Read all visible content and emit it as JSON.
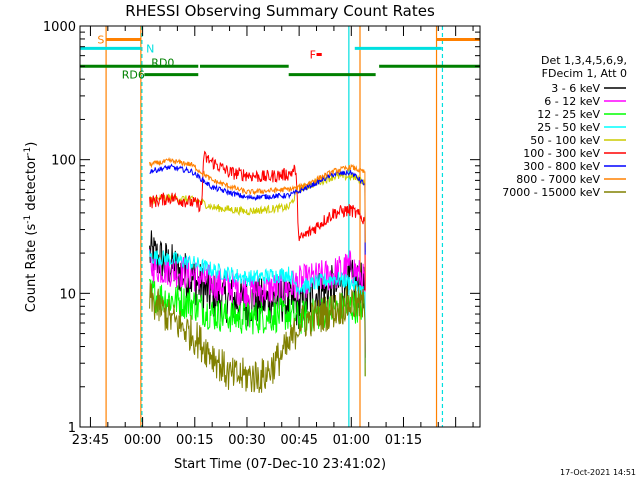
{
  "chart_data": {
    "type": "line",
    "title": "RHESSI Observing Summary Count Rates",
    "xlabel": "Start Time (07-Dec-10 23:41:02)",
    "ylabel_main": "Count Rate (s",
    "ylabel_sup1": "-1",
    "ylabel_mid": " detector",
    "ylabel_sup2": "-1",
    "ylabel_end": ")",
    "y_scale": "log",
    "ylim": [
      1,
      1000
    ],
    "y_ticks": [
      {
        "v": 1,
        "label": "1"
      },
      {
        "v": 10,
        "label": "10"
      },
      {
        "v": 100,
        "label": "100"
      },
      {
        "v": 1000,
        "label": "1000"
      }
    ],
    "xlim_minutes": [
      -18,
      97
    ],
    "x_ticks": [
      {
        "t": -15,
        "label": "23:45"
      },
      {
        "t": 0,
        "label": "00:00"
      },
      {
        "t": 15,
        "label": "00:15"
      },
      {
        "t": 30,
        "label": "00:30"
      },
      {
        "t": 45,
        "label": "00:45"
      },
      {
        "t": 60,
        "label": "01:00"
      },
      {
        "t": 75,
        "label": "01:15"
      }
    ],
    "legend_title_1": "Det 1,3,4,5,6,9,",
    "legend_title_2": "FDecim 1, Att 0",
    "legend_placement": "right",
    "series": [
      {
        "name": "3 - 6 keV",
        "color": "#000000",
        "noise": 0.18,
        "points": [
          [
            2,
            20
          ],
          [
            8,
            16
          ],
          [
            14,
            13
          ],
          [
            20,
            9.5
          ],
          [
            30,
            8.5
          ],
          [
            40,
            9
          ],
          [
            45,
            8
          ],
          [
            50,
            10
          ],
          [
            60,
            12
          ],
          [
            64,
            11
          ]
        ]
      },
      {
        "name": "6 - 12 keV",
        "color": "#ff00ff",
        "noise": 0.13,
        "points": [
          [
            2,
            16
          ],
          [
            8,
            15
          ],
          [
            14,
            14
          ],
          [
            20,
            12
          ],
          [
            30,
            10.5
          ],
          [
            42,
            11
          ],
          [
            45,
            12
          ],
          [
            55,
            14
          ],
          [
            60,
            16
          ],
          [
            64,
            12
          ]
        ]
      },
      {
        "name": "12 - 25 keV",
        "color": "#00ff00",
        "noise": 0.13,
        "points": [
          [
            2,
            10
          ],
          [
            8,
            9
          ],
          [
            14,
            8.5
          ],
          [
            20,
            7
          ],
          [
            30,
            6.5
          ],
          [
            42,
            7
          ],
          [
            45,
            6.5
          ],
          [
            55,
            7.5
          ],
          [
            60,
            8
          ],
          [
            64,
            8
          ]
        ]
      },
      {
        "name": "25 - 50 keV",
        "color": "#00ffff",
        "noise": 0.06,
        "points": [
          [
            2,
            19
          ],
          [
            8,
            18
          ],
          [
            14,
            17
          ],
          [
            20,
            15
          ],
          [
            30,
            13
          ],
          [
            42,
            14
          ],
          [
            45,
            11
          ],
          [
            55,
            13
          ],
          [
            60,
            12
          ],
          [
            64,
            10
          ]
        ]
      },
      {
        "name": "50 - 100 keV",
        "color": "#cccc00",
        "noise": 0.03,
        "points": [
          [
            2,
            50
          ],
          [
            8,
            52
          ],
          [
            14,
            50
          ],
          [
            17,
            48
          ],
          [
            20,
            44
          ],
          [
            30,
            41
          ],
          [
            42,
            44
          ],
          [
            45,
            60
          ],
          [
            55,
            75
          ],
          [
            60,
            75
          ],
          [
            64,
            68
          ]
        ]
      },
      {
        "name": "100 - 300 keV",
        "color": "#ff0000",
        "noise": 0.05,
        "points": [
          [
            2,
            48
          ],
          [
            8,
            52
          ],
          [
            14,
            48
          ],
          [
            17,
            45
          ],
          [
            17.5,
            105
          ],
          [
            25,
            80
          ],
          [
            35,
            74
          ],
          [
            42,
            78
          ],
          [
            44,
            85
          ],
          [
            45,
            25
          ],
          [
            55,
            40
          ],
          [
            60,
            42
          ],
          [
            64,
            35
          ]
        ]
      },
      {
        "name": "300 - 800 keV",
        "color": "#0000ff",
        "noise": 0.02,
        "points": [
          [
            2,
            82
          ],
          [
            8,
            88
          ],
          [
            14,
            82
          ],
          [
            20,
            62
          ],
          [
            30,
            52
          ],
          [
            42,
            54
          ],
          [
            45,
            58
          ],
          [
            55,
            78
          ],
          [
            60,
            80
          ],
          [
            64,
            65
          ]
        ]
      },
      {
        "name": "800 - 7000 keV",
        "color": "#ff8000",
        "noise": 0.02,
        "points": [
          [
            2,
            92
          ],
          [
            8,
            98
          ],
          [
            14,
            92
          ],
          [
            20,
            70
          ],
          [
            30,
            57
          ],
          [
            42,
            60
          ],
          [
            45,
            62
          ],
          [
            55,
            82
          ],
          [
            60,
            88
          ],
          [
            64,
            80
          ]
        ]
      },
      {
        "name": "7000 - 15000 keV",
        "color": "#808000",
        "noise": 0.14,
        "points": [
          [
            2,
            9
          ],
          [
            8,
            6.5
          ],
          [
            14,
            5
          ],
          [
            20,
            3.5
          ],
          [
            25,
            2.4
          ],
          [
            35,
            2.4
          ],
          [
            38,
            3
          ],
          [
            42,
            4
          ],
          [
            45,
            6
          ],
          [
            55,
            7.5
          ],
          [
            60,
            8.5
          ],
          [
            64,
            8
          ]
        ]
      }
    ],
    "vlines": [
      {
        "t": -19.5,
        "color": "#00e0e0",
        "dash": false
      },
      {
        "t": -10.5,
        "color": "#ff8000",
        "dash": false
      },
      {
        "t": -0.5,
        "color": "#ff8000",
        "dash": false
      },
      {
        "t": -0.2,
        "color": "#00e0e0",
        "dash": true
      },
      {
        "t": 59.3,
        "color": "#00e0e0",
        "dash": false
      },
      {
        "t": 62.5,
        "color": "#ff8000",
        "dash": false
      },
      {
        "t": 84.5,
        "color": "#ff8000",
        "dash": false
      },
      {
        "t": 86.2,
        "color": "#00e0e0",
        "dash": true
      }
    ],
    "flag_bars": [
      {
        "label": "S",
        "color": "#ff8000",
        "y": 793,
        "segments": [
          [
            -10.5,
            -0.5
          ],
          [
            84.5,
            97
          ]
        ]
      },
      {
        "label": "N",
        "color": "#00e0e0",
        "y": 680,
        "segments": [
          [
            -18,
            -0.5
          ],
          [
            61,
            86
          ]
        ]
      },
      {
        "label": "RD0",
        "color": "#008000",
        "y": 500,
        "segments": [
          [
            -18,
            16
          ],
          [
            16.5,
            42
          ],
          [
            68,
            97
          ]
        ]
      },
      {
        "label": "RD6",
        "color": "#008000",
        "y": 433,
        "segments": [
          [
            0.5,
            16
          ],
          [
            42,
            67
          ]
        ]
      },
      {
        "label": "F",
        "color": "#ff0000",
        "y": 612,
        "segments": [
          [
            50,
            51.5
          ]
        ]
      }
    ],
    "flag_labels": [
      {
        "text": "S",
        "t": -13,
        "y": 793,
        "color": "#ff8000"
      },
      {
        "text": "N",
        "t": 1,
        "y": 680,
        "color": "#00e0e0"
      },
      {
        "text": "RD0",
        "t": 2.5,
        "y": 535,
        "color": "#008000"
      },
      {
        "text": "RD6",
        "t": -6,
        "y": 433,
        "color": "#008000"
      },
      {
        "text": "F",
        "t": 48,
        "y": 612,
        "color": "#ff0000"
      }
    ]
  },
  "footer_timestamp": "17-Oct-2021 14:51"
}
